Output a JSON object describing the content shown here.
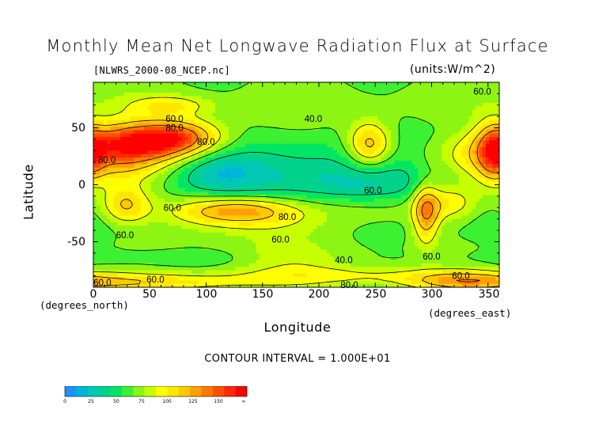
{
  "chart_data": {
    "type": "heatmap",
    "title": "Monthly Mean Net Longwave Radiation Flux at Surface",
    "subtitle": "[NLWRS_2000-08_NCEP.nc]",
    "units": "(units:W/m^2)",
    "xlabel": "Longitude",
    "ylabel": "Latitude",
    "x_units_label": "(degrees_east)",
    "y_units_label": "(degrees_north)",
    "xlim": [
      0,
      360
    ],
    "ylim": [
      -90,
      90
    ],
    "x_ticks": [
      "0",
      "50",
      "100",
      "150",
      "200",
      "250",
      "300",
      "350"
    ],
    "y_ticks": [
      "50",
      "0",
      "-50"
    ],
    "contour_interval_text": "CONTOUR INTERVAL = 1.000E+01",
    "contour_labels": [
      {
        "text": "60.0",
        "lon": 72,
        "lat": 58
      },
      {
        "text": "80.0",
        "lon": 72,
        "lat": 50
      },
      {
        "text": "80.0",
        "lon": 100,
        "lat": 38
      },
      {
        "text": "80.0",
        "lon": 12,
        "lat": 22
      },
      {
        "text": "40.0",
        "lon": 195,
        "lat": 58
      },
      {
        "text": "60.0",
        "lon": 345,
        "lat": 82
      },
      {
        "text": "60.0",
        "lon": 248,
        "lat": -5
      },
      {
        "text": "60.0",
        "lon": 70,
        "lat": -20
      },
      {
        "text": "80.0",
        "lon": 172,
        "lat": -28
      },
      {
        "text": "60.0",
        "lon": 28,
        "lat": -44
      },
      {
        "text": "60.0",
        "lon": 166,
        "lat": -48
      },
      {
        "text": "40.0",
        "lon": 222,
        "lat": -66
      },
      {
        "text": "60.0",
        "lon": 300,
        "lat": -63
      },
      {
        "text": "60.0",
        "lon": 8,
        "lat": -86
      },
      {
        "text": "60.0",
        "lon": 55,
        "lat": -83
      },
      {
        "text": "80.0",
        "lon": 227,
        "lat": -88
      },
      {
        "text": "60.0",
        "lon": 326,
        "lat": -80
      }
    ],
    "colorbar": {
      "ticks": [
        "0",
        "25",
        "50",
        "75",
        "100",
        "125",
        "150",
        "∞"
      ],
      "colors": [
        "#1e90ff",
        "#00b4dc",
        "#00c8b4",
        "#00d28c",
        "#00e664",
        "#3cf032",
        "#8cf514",
        "#c8ff00",
        "#ffff00",
        "#ffe600",
        "#ffc800",
        "#ffa000",
        "#ff7800",
        "#ff5000",
        "#ff2800",
        "#ff0000"
      ]
    }
  }
}
